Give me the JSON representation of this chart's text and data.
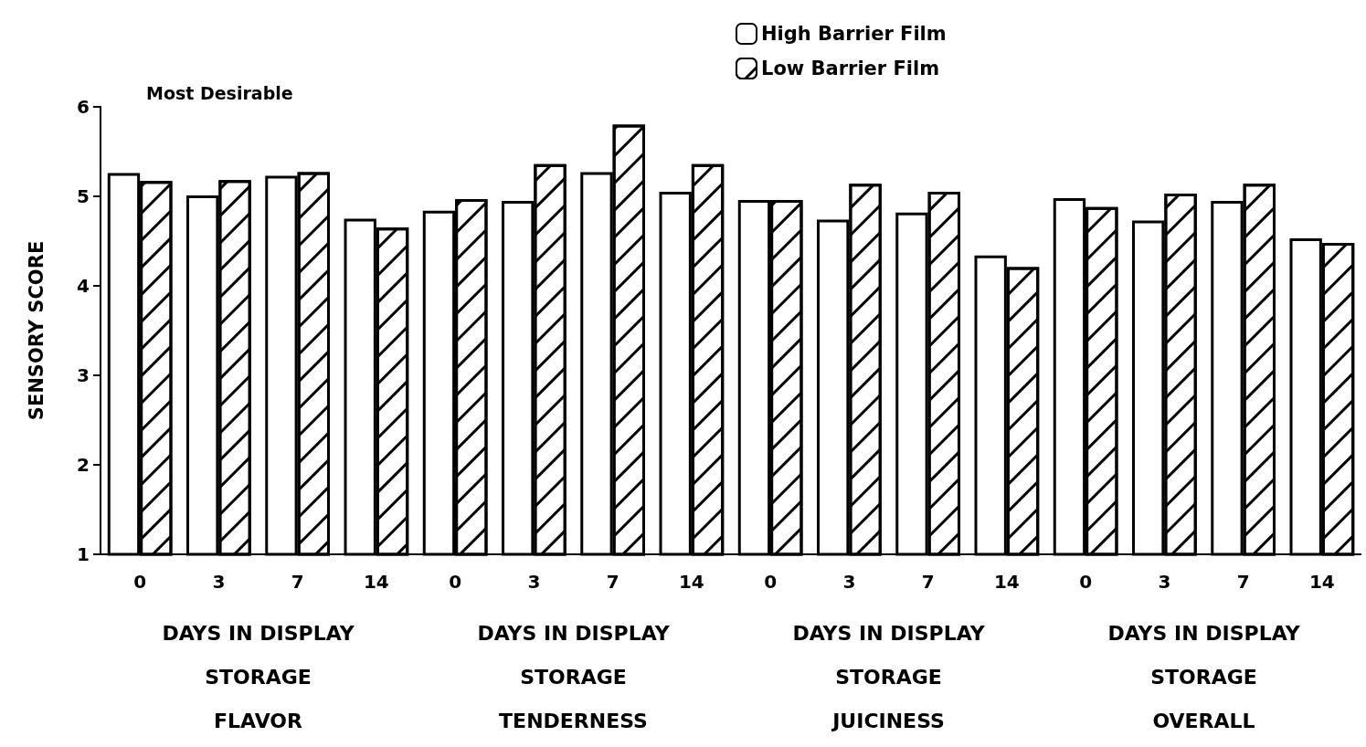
{
  "chart_data": [
    {
      "type": "bar",
      "categories": [
        "0",
        "3",
        "7",
        "14"
      ],
      "xlabel": "DAYS IN DISPLAY\nSTORAGE\nFLAVOR",
      "ylabel": "SENSORY SCORE",
      "ylim": [
        1,
        6
      ],
      "yticks": [
        1,
        2,
        3,
        4,
        5,
        6
      ],
      "grid": false,
      "annotations": [
        "Most Desirable"
      ],
      "series": [
        {
          "color": "#ffffff",
          "values": [
            5.26,
            5.01,
            5.23,
            4.75
          ]
        },
        {
          "color": "#ffffff",
          "values": [
            5.17,
            5.18,
            5.27,
            4.65
          ]
        }
      ]
    },
    {
      "type": "bar",
      "categories": [
        "0",
        "3",
        "7",
        "14"
      ],
      "xlabel": "DAYS IN DISPLAY\nSTORAGE\nTENDERNESS",
      "ylim": [
        1,
        6
      ],
      "tick_labels": "x",
      "grid": false,
      "series": [
        {
          "color": "#ffffff",
          "values": [
            4.84,
            4.95,
            5.27,
            5.05
          ]
        },
        {
          "color": "#ffffff",
          "values": [
            4.97,
            5.36,
            5.8,
            5.36
          ]
        }
      ]
    },
    {
      "type": "bar",
      "categories": [
        "0",
        "3",
        "7",
        "14"
      ],
      "xlabel": "DAYS IN DISPLAY\nSTORAGE\nJUICINESS",
      "ylim": [
        1,
        6
      ],
      "tick_labels": "x",
      "grid": false,
      "legend": "top",
      "series": [
        {
          "name": "High Barrier Film",
          "color": "#ffffff",
          "values": [
            4.96,
            4.74,
            4.82,
            4.34
          ]
        },
        {
          "name": "Low Barrier Film",
          "color": "#ffffff",
          "values": [
            4.96,
            5.14,
            5.05,
            4.21
          ]
        }
      ]
    },
    {
      "type": "bar",
      "categories": [
        "0",
        "3",
        "7",
        "14"
      ],
      "xlabel": "DAYS IN DISPLAY\nSTORAGE\nOVERALL",
      "ylim": [
        1,
        6
      ],
      "tick_labels": "x",
      "grid": false,
      "series": [
        {
          "color": "#ffffff",
          "values": [
            4.98,
            4.73,
            4.95,
            4.53
          ]
        },
        {
          "color": "#ffffff",
          "values": [
            4.88,
            5.03,
            5.14,
            4.48
          ]
        }
      ]
    }
  ]
}
